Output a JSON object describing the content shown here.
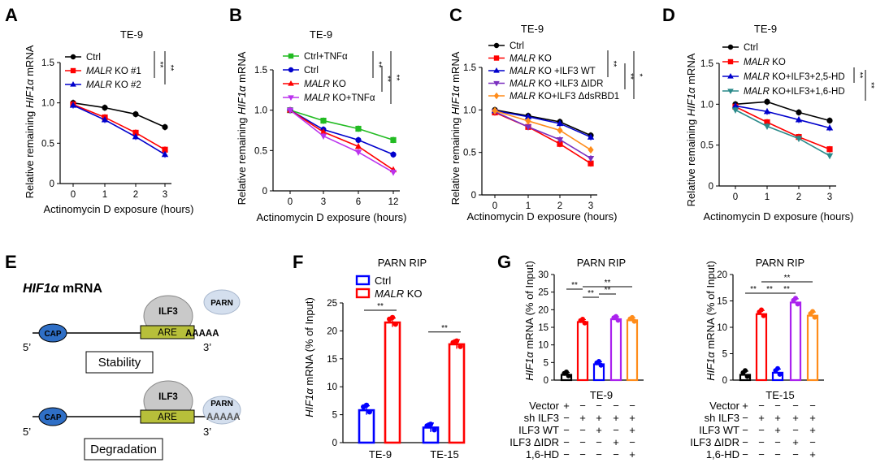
{
  "panels": {
    "A": {
      "letter": "A",
      "title": "TE-9",
      "ylabel": "Relative remaining HIF1α mRNA",
      "xlabel": "Actinomycin D exposure (hours)"
    },
    "B": {
      "letter": "B",
      "title": "TE-9",
      "ylabel": "Relative remaining HIF1α mRNA",
      "xlabel": "Actinomycin D exposure (hours)"
    },
    "C": {
      "letter": "C",
      "title": "TE-9",
      "ylabel": "Relative remaining HIF1α mRNA",
      "xlabel": "Actinomycin D exposure (hours)"
    },
    "D": {
      "letter": "D",
      "title": "TE-9",
      "ylabel": "Relative remaining HIF1α mRNA",
      "xlabel": "Actinomycin D exposure (hours)"
    },
    "E": {
      "letter": "E",
      "title": "HIF1α mRNA",
      "cap": "CAP",
      "ilf3": "ILF3",
      "are": "ARE",
      "parn": "PARN",
      "polya": "AAAAA",
      "five_prime": "5’",
      "three_prime": "3’",
      "stability": "Stability",
      "degradation": "Degradation"
    },
    "F": {
      "letter": "F",
      "title": "PARN RIP",
      "ylabel": "HIF1α mRNA (% of Input)"
    },
    "G": {
      "letter": "G",
      "title1": "PARN RIP",
      "title2": "PARN RIP",
      "ylabel": "HIF1α mRNA (% of Input)",
      "cell1": "TE-9",
      "cell2": "TE-15",
      "rows": [
        "Vector",
        "sh ILF3",
        "ILF3 WT",
        "ILF3 ΔIDR",
        "1,6-HD"
      ],
      "signs": [
        [
          "+",
          "−",
          "−",
          "−",
          "−"
        ],
        [
          "−",
          "+",
          "+",
          "+",
          "+"
        ],
        [
          "−",
          "−",
          "+",
          "−",
          "+"
        ],
        [
          "−",
          "−",
          "−",
          "+",
          "−"
        ],
        [
          "−",
          "−",
          "−",
          "−",
          "+"
        ]
      ]
    }
  },
  "chart_data": [
    {
      "id": "A",
      "type": "line",
      "title": "TE-9",
      "xlabel": "Actinomycin D exposure (hours)",
      "ylabel": "Relative remaining HIF1α mRNA",
      "x": [
        0,
        1,
        2,
        3
      ],
      "xticks": [
        "0",
        "1",
        "2",
        "3"
      ],
      "ylim": [
        0,
        1.5
      ],
      "yticks": [
        "0",
        "0.5",
        "1.0",
        "1.5"
      ],
      "series": [
        {
          "name": "Ctrl",
          "color": "#000000",
          "marker": "circle",
          "values": [
            1.0,
            0.94,
            0.86,
            0.7
          ]
        },
        {
          "name": "MALR KO #1",
          "color": "#ff0000",
          "marker": "square",
          "values": [
            0.98,
            0.82,
            0.63,
            0.42
          ]
        },
        {
          "name": "MALR KO #2",
          "color": "#0000cc",
          "marker": "triangle",
          "values": [
            0.97,
            0.79,
            0.58,
            0.36
          ]
        }
      ],
      "sig": [
        "**",
        "**"
      ]
    },
    {
      "id": "B",
      "type": "line",
      "title": "TE-9",
      "xlabel": "Actinomycin D exposure (hours)",
      "ylabel": "Relative remaining HIF1α mRNA",
      "x": [
        0,
        3,
        6,
        12
      ],
      "xticks": [
        "0",
        "3",
        "6",
        "12"
      ],
      "ylim": [
        0,
        1.5
      ],
      "yticks": [
        "0",
        "0.5",
        "1.0",
        "1.5"
      ],
      "series": [
        {
          "name": "Ctrl+TNFα",
          "color": "#22bb22",
          "marker": "square",
          "values": [
            1.0,
            0.87,
            0.77,
            0.63
          ]
        },
        {
          "name": "Ctrl",
          "color": "#0000cc",
          "marker": "circle",
          "values": [
            1.0,
            0.76,
            0.63,
            0.45
          ]
        },
        {
          "name": "MALR KO",
          "color": "#ff0000",
          "marker": "triangle",
          "values": [
            1.0,
            0.73,
            0.55,
            0.26
          ]
        },
        {
          "name": "MALR KO+TNFα",
          "color": "#bb33ee",
          "marker": "triangle-down",
          "values": [
            1.0,
            0.68,
            0.48,
            0.23
          ]
        }
      ],
      "sig": [
        "**",
        "**",
        "**"
      ]
    },
    {
      "id": "C",
      "type": "line",
      "title": "TE-9",
      "xlabel": "Actinomycin D exposure (hours)",
      "ylabel": "Relative remaining HIF1α mRNA",
      "x": [
        0,
        1,
        2,
        3
      ],
      "xticks": [
        "0",
        "1",
        "2",
        "3"
      ],
      "ylim": [
        0,
        1.5
      ],
      "yticks": [
        "0",
        "0.5",
        "1.0",
        "1.5"
      ],
      "series": [
        {
          "name": "Ctrl",
          "color": "#000000",
          "marker": "circle",
          "values": [
            1.0,
            0.93,
            0.86,
            0.7
          ]
        },
        {
          "name": "MALR KO",
          "color": "#ff0000",
          "marker": "square",
          "values": [
            0.97,
            0.8,
            0.6,
            0.37
          ]
        },
        {
          "name": "MALR KO +ILF3 WT",
          "color": "#0000cc",
          "marker": "triangle",
          "values": [
            0.99,
            0.92,
            0.84,
            0.68
          ]
        },
        {
          "name": "MALR KO +ILF3 ΔIDR",
          "color": "#7a2fbf",
          "marker": "triangle-down",
          "values": [
            0.98,
            0.8,
            0.65,
            0.43
          ]
        },
        {
          "name": "MALR KO+ILF3 ΔdsRBD1",
          "color": "#ff8c1a",
          "marker": "diamond",
          "values": [
            0.99,
            0.87,
            0.76,
            0.53
          ]
        }
      ],
      "sig": [
        "**",
        "**",
        "*"
      ]
    },
    {
      "id": "D",
      "type": "line",
      "title": "TE-9",
      "xlabel": "Actinomycin D exposure (hours)",
      "ylabel": "Relative remaining HIF1α mRNA",
      "x": [
        0,
        1,
        2,
        3
      ],
      "xticks": [
        "0",
        "1",
        "2",
        "3"
      ],
      "ylim": [
        0,
        1.5
      ],
      "yticks": [
        "0",
        "0.5",
        "1.0",
        "1.5"
      ],
      "series": [
        {
          "name": "Ctrl",
          "color": "#000000",
          "marker": "circle",
          "values": [
            1.0,
            1.03,
            0.9,
            0.8
          ]
        },
        {
          "name": "MALR KO",
          "color": "#ff0000",
          "marker": "square",
          "values": [
            0.97,
            0.78,
            0.6,
            0.45
          ]
        },
        {
          "name": "MALR KO+ILF3+2,5-HD",
          "color": "#0000cc",
          "marker": "triangle",
          "values": [
            0.98,
            0.91,
            0.81,
            0.71
          ]
        },
        {
          "name": "MALR KO+ILF3+1,6-HD",
          "color": "#2a8a8a",
          "marker": "triangle-down",
          "values": [
            0.93,
            0.73,
            0.58,
            0.37
          ]
        }
      ],
      "sig": [
        "**",
        "**"
      ]
    },
    {
      "id": "F",
      "type": "bar",
      "title": "PARN RIP",
      "ylabel": "HIF1α mRNA (% of Input)",
      "categories": [
        "TE-9",
        "TE-15"
      ],
      "ylim": [
        0,
        25
      ],
      "yticks": [
        "0",
        "5",
        "10",
        "15",
        "20",
        "25"
      ],
      "series": [
        {
          "name": "Ctrl",
          "color": "#0000ff",
          "values": [
            5.8,
            2.7
          ]
        },
        {
          "name": "MALR KO",
          "color": "#ff0000",
          "values": [
            21.5,
            17.6
          ]
        }
      ],
      "sig": [
        "**",
        "**"
      ]
    },
    {
      "id": "G1",
      "type": "bar",
      "title": "PARN RIP",
      "ylabel": "HIF1α mRNA (% of Input)",
      "xlabel": "TE-9",
      "ylim": [
        0,
        30
      ],
      "yticks": [
        "0",
        "5",
        "10",
        "15",
        "20",
        "25",
        "30"
      ],
      "values": [
        1.5,
        16.5,
        4.5,
        17.3,
        17.0
      ],
      "colors": [
        "#000000",
        "#ff0000",
        "#0000ff",
        "#aa22ee",
        "#ff8c1a"
      ],
      "sig": [
        "**",
        "**",
        "**",
        "**"
      ]
    },
    {
      "id": "G2",
      "type": "bar",
      "title": "PARN RIP",
      "ylabel": "HIF1α mRNA (% of Input)",
      "xlabel": "TE-15",
      "ylim": [
        0,
        20
      ],
      "yticks": [
        "0",
        "5",
        "10",
        "15",
        "20"
      ],
      "values": [
        1.0,
        12.5,
        1.4,
        14.7,
        12.2
      ],
      "colors": [
        "#000000",
        "#ff0000",
        "#0000ff",
        "#aa22ee",
        "#ff8c1a"
      ],
      "sig": [
        "**",
        "**",
        "**",
        "**"
      ]
    }
  ]
}
